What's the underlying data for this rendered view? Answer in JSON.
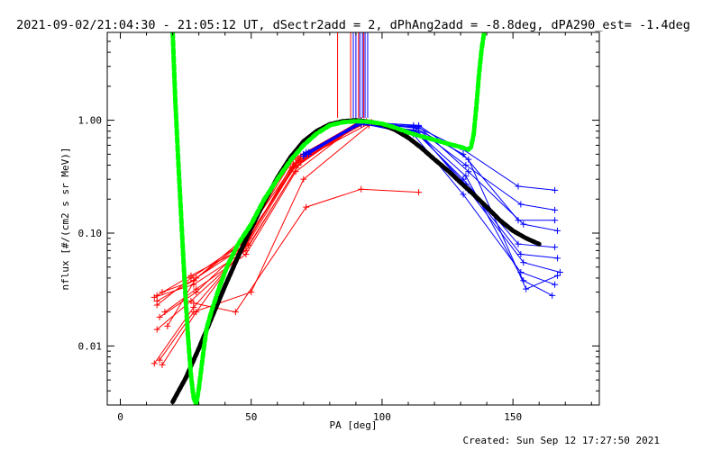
{
  "chart_data": {
    "type": "scatter",
    "title": "2021-09-02/21:04:30 - 21:05:12 UT, dSectr2add = 2, dPhAng2add = -8.8deg, dPA290_est= -1.4deg",
    "xlabel": "PA [deg]",
    "ylabel": "nflux [#/(cm2 s sr MeV)]",
    "xlim": [
      -5,
      183
    ],
    "ylim": [
      0.003,
      6.0
    ],
    "ylog": true,
    "xticks": [
      0,
      50,
      100,
      150
    ],
    "xtick_labels": [
      "0",
      "50",
      "100",
      "150"
    ],
    "yticks": [
      0.01,
      0.1,
      1.0
    ],
    "ytick_labels": [
      "0.01",
      "0.10",
      "1.00"
    ],
    "grid": false,
    "created": "Created: Sun Sep 12 17:27:50 2021",
    "colors": {
      "red": "#ff0000",
      "blue": "#0000ff",
      "black": "#000000",
      "green": "#00ff00"
    },
    "vertical_lines": {
      "red_x": [
        83,
        88,
        91,
        93
      ],
      "blue_x": [
        89,
        90,
        91.5,
        92.5,
        93.5,
        94.5
      ],
      "ymin": 1.05
    },
    "red_series": [
      {
        "name": "",
        "x": [
          13,
          28,
          48,
          68,
          92
        ],
        "y": [
          0.027,
          0.035,
          0.07,
          0.4,
          0.97
        ]
      },
      {
        "name": "",
        "x": [
          14,
          27,
          46,
          66,
          91
        ],
        "y": [
          0.023,
          0.04,
          0.08,
          0.45,
          0.96
        ]
      },
      {
        "name": "",
        "x": [
          15,
          29,
          47,
          67,
          93
        ],
        "y": [
          0.018,
          0.03,
          0.075,
          0.42,
          0.94
        ]
      },
      {
        "name": "",
        "x": [
          16,
          28,
          49,
          69,
          94
        ],
        "y": [
          0.03,
          0.038,
          0.09,
          0.48,
          0.95
        ]
      },
      {
        "name": "",
        "x": [
          14,
          27,
          45,
          65,
          92
        ],
        "y": [
          0.014,
          0.025,
          0.06,
          0.38,
          0.92
        ]
      },
      {
        "name": "",
        "x": [
          17,
          29,
          48,
          67,
          91
        ],
        "y": [
          0.02,
          0.032,
          0.065,
          0.35,
          0.93
        ]
      },
      {
        "name": "",
        "x": [
          15,
          28,
          50,
          70,
          95
        ],
        "y": [
          0.0075,
          0.02,
          0.03,
          0.3,
          0.9
        ]
      },
      {
        "name": "",
        "x": [
          13,
          28,
          47,
          68,
          93
        ],
        "y": [
          0.007,
          0.022,
          0.07,
          0.44,
          0.97
        ]
      },
      {
        "name": "",
        "x": [
          16,
          29,
          48,
          66,
          96
        ],
        "y": [
          0.0068,
          0.02,
          0.08,
          0.41,
          0.96
        ]
      },
      {
        "name": "",
        "x": [
          14,
          28,
          46,
          68,
          92
        ],
        "y": [
          0.025,
          0.038,
          0.085,
          0.46,
          1.0
        ]
      },
      {
        "name": "",
        "x": [
          18,
          29,
          45,
          67,
          91
        ],
        "y": [
          0.015,
          0.04,
          0.07,
          0.39,
          0.95
        ]
      },
      {
        "name": "",
        "x": [
          14,
          27,
          49,
          69,
          94
        ],
        "y": [
          0.028,
          0.042,
          0.078,
          0.43,
          0.98
        ]
      },
      {
        "name": "",
        "x": [
          28,
          44,
          71,
          92,
          114
        ],
        "y": [
          0.024,
          0.02,
          0.17,
          0.245,
          0.23
        ]
      }
    ],
    "blue_series": [
      {
        "name": "",
        "x": [
          70,
          92,
          112,
          131,
          152,
          166
        ],
        "y": [
          0.5,
          0.97,
          0.9,
          0.55,
          0.26,
          0.24
        ]
      },
      {
        "name": "",
        "x": [
          71,
          93,
          113,
          132,
          153,
          166
        ],
        "y": [
          0.52,
          0.95,
          0.85,
          0.4,
          0.18,
          0.16
        ]
      },
      {
        "name": "",
        "x": [
          72,
          92,
          114,
          133,
          154,
          167
        ],
        "y": [
          0.5,
          0.94,
          0.88,
          0.35,
          0.12,
          0.105
        ]
      },
      {
        "name": "",
        "x": [
          70,
          91,
          112,
          131,
          152,
          166
        ],
        "y": [
          0.48,
          0.93,
          0.82,
          0.3,
          0.08,
          0.075
        ]
      },
      {
        "name": "",
        "x": [
          71,
          92,
          113,
          132,
          153,
          167
        ],
        "y": [
          0.5,
          0.92,
          0.8,
          0.27,
          0.065,
          0.06
        ]
      },
      {
        "name": "",
        "x": [
          72,
          93,
          114,
          133,
          154,
          168
        ],
        "y": [
          0.52,
          0.96,
          0.78,
          0.24,
          0.055,
          0.045
        ]
      },
      {
        "name": "",
        "x": [
          70,
          91,
          112,
          131,
          153,
          166
        ],
        "y": [
          0.48,
          0.95,
          0.75,
          0.22,
          0.045,
          0.035
        ]
      },
      {
        "name": "",
        "x": [
          71,
          92,
          113,
          132,
          154,
          165
        ],
        "y": [
          0.5,
          0.97,
          0.8,
          0.32,
          0.038,
          0.028
        ]
      },
      {
        "name": "",
        "x": [
          72,
          93,
          114,
          133,
          155,
          167
        ],
        "y": [
          0.52,
          0.96,
          0.9,
          0.45,
          0.032,
          0.042
        ]
      },
      {
        "name": "",
        "x": [
          70,
          92,
          112,
          131,
          152,
          166
        ],
        "y": [
          0.5,
          0.98,
          0.87,
          0.5,
          0.13,
          0.13
        ]
      }
    ],
    "black_curve": {
      "x": [
        20,
        25,
        30,
        35,
        40,
        45,
        50,
        55,
        60,
        65,
        70,
        75,
        80,
        85,
        90,
        95,
        100,
        105,
        110,
        115,
        120,
        125,
        130,
        135,
        140,
        145,
        150,
        155,
        160
      ],
      "y": [
        0.0032,
        0.0052,
        0.0095,
        0.018,
        0.034,
        0.062,
        0.11,
        0.19,
        0.31,
        0.47,
        0.65,
        0.8,
        0.92,
        0.98,
        1.0,
        0.97,
        0.92,
        0.82,
        0.7,
        0.57,
        0.45,
        0.36,
        0.28,
        0.22,
        0.17,
        0.13,
        0.105,
        0.09,
        0.08
      ]
    },
    "green_curve": {
      "x": [
        20,
        21,
        22,
        23,
        24,
        25,
        26,
        27,
        28,
        29,
        30,
        31,
        32,
        33,
        35,
        38,
        41,
        45,
        50,
        55,
        60,
        65,
        70,
        75,
        80,
        85,
        90,
        95,
        100,
        105,
        110,
        115,
        120,
        125,
        130,
        133,
        134,
        135,
        136,
        137,
        138,
        139
      ],
      "y": [
        6.0,
        1.5,
        0.5,
        0.18,
        0.065,
        0.025,
        0.011,
        0.0055,
        0.0035,
        0.003,
        0.0042,
        0.0065,
        0.01,
        0.0145,
        0.021,
        0.034,
        0.052,
        0.08,
        0.12,
        0.2,
        0.3,
        0.44,
        0.6,
        0.76,
        0.9,
        0.96,
        0.98,
        0.97,
        0.93,
        0.86,
        0.78,
        0.72,
        0.67,
        0.62,
        0.58,
        0.55,
        0.58,
        0.75,
        1.3,
        2.5,
        4.2,
        6.0
      ]
    }
  }
}
